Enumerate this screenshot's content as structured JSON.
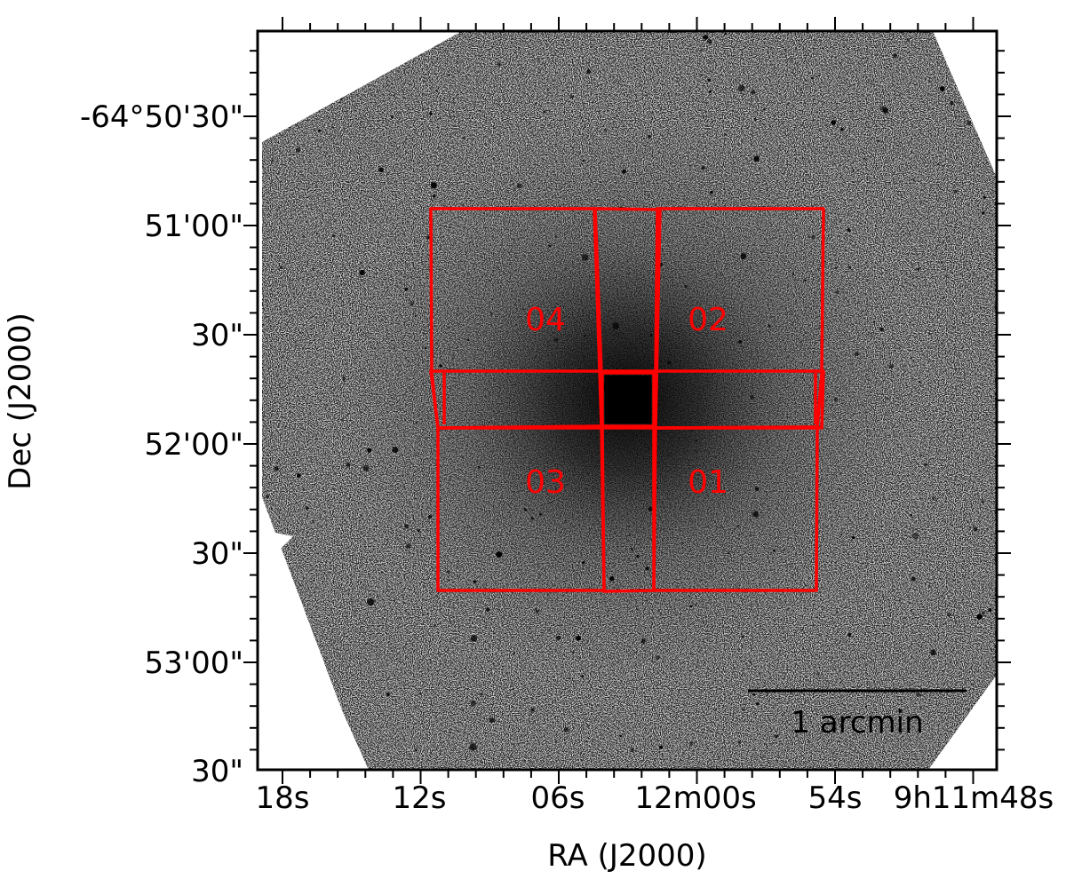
{
  "figure": {
    "x_axis_label": "RA (J2000)",
    "y_axis_label": "Dec (J2000)",
    "x_tick_labels": [
      "18s",
      "12s",
      "06s",
      "12m00s",
      "54s",
      "9h11m48s"
    ],
    "y_tick_labels": [
      "-64°50'30\"",
      "51'00\"",
      "30\"",
      "52'00\"",
      "30\"",
      "53'00\"",
      "30\""
    ],
    "field_labels": [
      "04",
      "02",
      "03",
      "01"
    ],
    "scale_bar_label": "1 arcmin",
    "colors": {
      "frame": "#000000",
      "field_outline": "#ff0000",
      "image_background": "#d6d6d6",
      "star": "#000000"
    },
    "image_description_icon": "star-field-image"
  }
}
